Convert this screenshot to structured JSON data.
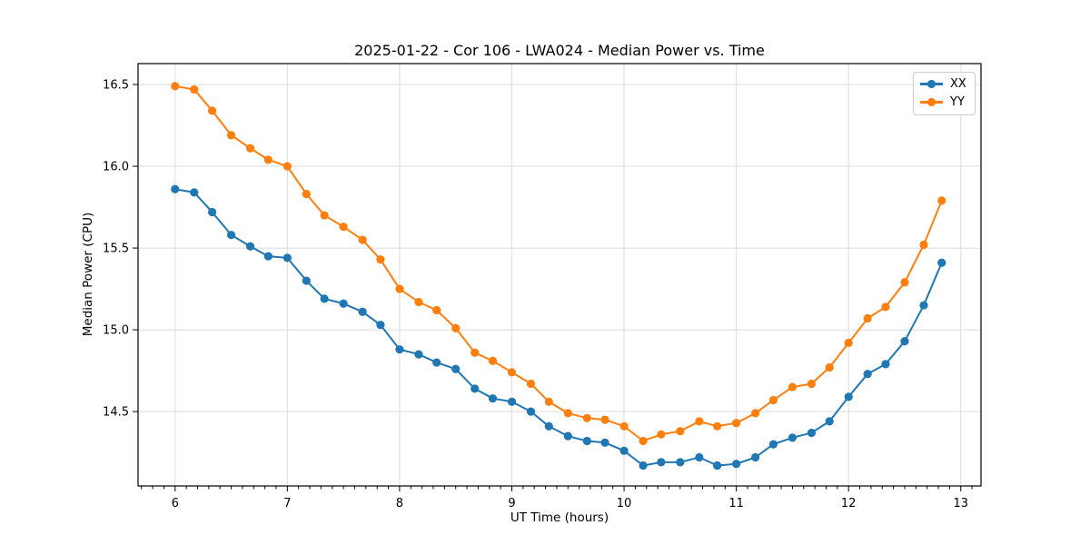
{
  "colors": {
    "series_xx": "#1f77b4",
    "series_yy": "#ff7f0e",
    "grid": "#dcdcdc",
    "axis": "#000000",
    "legend_border": "#cccccc",
    "background": "#ffffff"
  },
  "chart_data": {
    "type": "line",
    "title": "2025-01-22 - Cor 106 - LWA024 - Median Power vs. Time",
    "xlabel": "UT Time (hours)",
    "ylabel": "Median Power (CPU)",
    "grid": true,
    "legend_position": "upper right",
    "xlim": [
      5.67,
      13.18
    ],
    "ylim": [
      14.045,
      16.628
    ],
    "xticks": [
      6,
      7,
      8,
      9,
      10,
      11,
      12,
      13
    ],
    "yticks": [
      14.5,
      15.0,
      15.5,
      16.0,
      16.5
    ],
    "x_minor_step": 0.1,
    "x": [
      6.0,
      6.17,
      6.33,
      6.5,
      6.67,
      6.83,
      7.0,
      7.17,
      7.33,
      7.5,
      7.67,
      7.83,
      8.0,
      8.17,
      8.33,
      8.5,
      8.67,
      8.83,
      9.0,
      9.17,
      9.33,
      9.5,
      9.67,
      9.83,
      10.0,
      10.17,
      10.33,
      10.5,
      10.67,
      10.83,
      11.0,
      11.17,
      11.33,
      11.5,
      11.67,
      11.83,
      12.0,
      12.17,
      12.33,
      12.5,
      12.67,
      12.83
    ],
    "series": [
      {
        "name": "XX",
        "color": "#1f77b4",
        "marker": "circle",
        "values": [
          15.86,
          15.84,
          15.72,
          15.58,
          15.51,
          15.45,
          15.44,
          15.3,
          15.19,
          15.16,
          15.11,
          15.03,
          14.88,
          14.85,
          14.8,
          14.76,
          14.64,
          14.58,
          14.56,
          14.5,
          14.41,
          14.35,
          14.32,
          14.31,
          14.26,
          14.17,
          14.19,
          14.19,
          14.22,
          14.17,
          14.18,
          14.22,
          14.3,
          14.34,
          14.37,
          14.44,
          14.59,
          14.73,
          14.79,
          14.93,
          15.15,
          15.41
        ]
      },
      {
        "name": "YY",
        "color": "#ff7f0e",
        "marker": "circle",
        "values": [
          16.49,
          16.47,
          16.34,
          16.19,
          16.11,
          16.04,
          16.0,
          15.83,
          15.7,
          15.63,
          15.55,
          15.43,
          15.25,
          15.17,
          15.12,
          15.01,
          14.86,
          14.81,
          14.74,
          14.67,
          14.56,
          14.49,
          14.46,
          14.45,
          14.41,
          14.32,
          14.36,
          14.38,
          14.44,
          14.41,
          14.43,
          14.49,
          14.57,
          14.65,
          14.67,
          14.77,
          14.92,
          15.07,
          15.14,
          15.29,
          15.52,
          15.79
        ]
      }
    ]
  }
}
